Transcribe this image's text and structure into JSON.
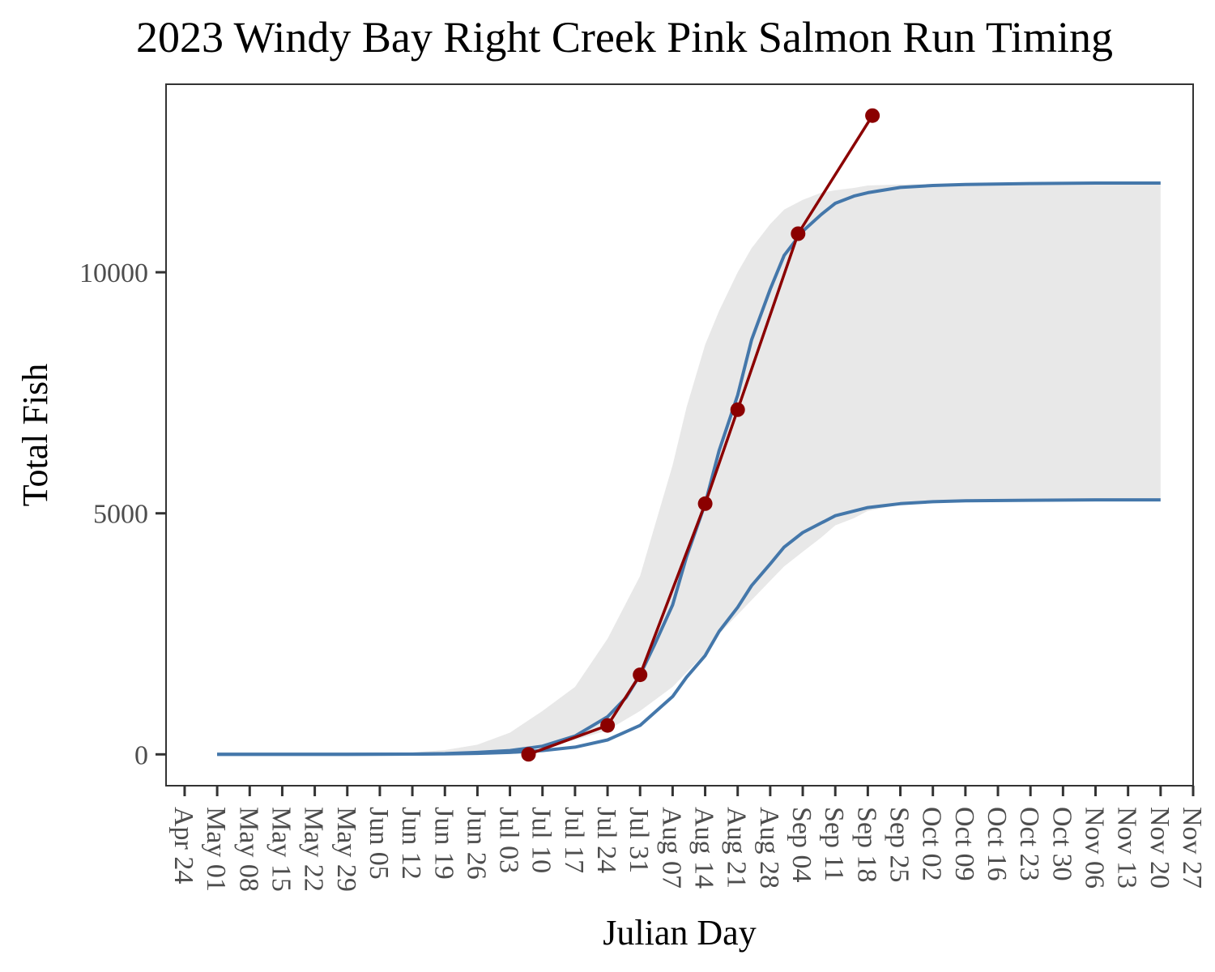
{
  "chart_data": {
    "type": "line",
    "title": "2023 Windy Bay Right Creek Pink Salmon Run Timing",
    "xlabel": "Julian Day",
    "ylabel": "Total Fish",
    "x_tick_labels": [
      "Apr 24",
      "May 01",
      "May 08",
      "May 15",
      "May 22",
      "May 29",
      "Jun 05",
      "Jun 12",
      "Jun 19",
      "Jun 26",
      "Jul 03",
      "Jul 10",
      "Jul 17",
      "Jul 24",
      "Jul 31",
      "Aug 07",
      "Aug 14",
      "Aug 21",
      "Aug 28",
      "Sep 04",
      "Sep 11",
      "Sep 18",
      "Sep 25",
      "Oct 02",
      "Oct 09",
      "Oct 16",
      "Oct 23",
      "Oct 30",
      "Nov 06",
      "Nov 13",
      "Nov 20",
      "Nov 27"
    ],
    "y_ticks": [
      0,
      5000,
      10000
    ],
    "y_tick_labels": [
      "0",
      "5000",
      "10000"
    ],
    "ylim": [
      -650,
      13900
    ],
    "xlim": [
      "2023-04-20",
      "2023-11-27"
    ],
    "grid": false,
    "panel_background": "#ebebeb",
    "colors": {
      "band": "#e8e8e8",
      "curve": "#4477aa",
      "observed": "#8b0000",
      "panel_border": "#333333",
      "axis_text": "#4d4d4d"
    },
    "band": {
      "x": [
        "2023-05-01",
        "2023-05-15",
        "2023-05-29",
        "2023-06-12",
        "2023-06-19",
        "2023-06-26",
        "2023-07-03",
        "2023-07-10",
        "2023-07-17",
        "2023-07-24",
        "2023-07-31",
        "2023-08-07",
        "2023-08-10",
        "2023-08-14",
        "2023-08-17",
        "2023-08-21",
        "2023-08-24",
        "2023-08-28",
        "2023-08-31",
        "2023-09-04",
        "2023-09-08",
        "2023-09-11",
        "2023-09-15",
        "2023-09-18",
        "2023-09-25",
        "2023-10-02",
        "2023-10-09",
        "2023-10-23",
        "2023-11-06",
        "2023-11-20"
      ],
      "upper": [
        0,
        0,
        10,
        40,
        90,
        200,
        450,
        900,
        1400,
        2400,
        3700,
        6000,
        7200,
        8500,
        9200,
        10000,
        10500,
        11000,
        11300,
        11500,
        11650,
        11700,
        11750,
        11800,
        11820,
        11830,
        11840,
        11850,
        11850,
        11850
      ],
      "lower": [
        0,
        0,
        0,
        10,
        20,
        40,
        80,
        150,
        300,
        500,
        900,
        1400,
        1700,
        2100,
        2500,
        2900,
        3200,
        3600,
        3900,
        4200,
        4500,
        4750,
        4900,
        5050,
        5180,
        5220,
        5250,
        5270,
        5280,
        5280
      ]
    },
    "series": [
      {
        "x": [
          "2023-05-01",
          "2023-05-15",
          "2023-05-29",
          "2023-06-12",
          "2023-06-19",
          "2023-06-26",
          "2023-07-03",
          "2023-07-10",
          "2023-07-17",
          "2023-07-24",
          "2023-07-28",
          "2023-07-31",
          "2023-08-03",
          "2023-08-07",
          "2023-08-10",
          "2023-08-14",
          "2023-08-17",
          "2023-08-21",
          "2023-08-24",
          "2023-08-28",
          "2023-08-31",
          "2023-09-04",
          "2023-09-08",
          "2023-09-11",
          "2023-09-15",
          "2023-09-18",
          "2023-09-25",
          "2023-10-02",
          "2023-10-09",
          "2023-10-23",
          "2023-11-06",
          "2023-11-20"
        ],
        "values": [
          0,
          0,
          0,
          5,
          15,
          40,
          80,
          170,
          380,
          780,
          1180,
          1650,
          2250,
          3100,
          4100,
          5200,
          6300,
          7450,
          8600,
          9650,
          10350,
          10850,
          11200,
          11430,
          11580,
          11650,
          11760,
          11800,
          11820,
          11840,
          11850,
          11850
        ]
      },
      {
        "x": [
          "2023-05-01",
          "2023-05-15",
          "2023-05-29",
          "2023-06-12",
          "2023-06-19",
          "2023-06-26",
          "2023-07-03",
          "2023-07-10",
          "2023-07-17",
          "2023-07-24",
          "2023-07-31",
          "2023-08-07",
          "2023-08-10",
          "2023-08-14",
          "2023-08-17",
          "2023-08-21",
          "2023-08-24",
          "2023-08-28",
          "2023-08-31",
          "2023-09-04",
          "2023-09-11",
          "2023-09-18",
          "2023-09-25",
          "2023-10-02",
          "2023-10-09",
          "2023-10-23",
          "2023-11-06",
          "2023-11-20"
        ],
        "values": [
          0,
          0,
          0,
          5,
          10,
          20,
          40,
          80,
          150,
          300,
          600,
          1200,
          1600,
          2050,
          2550,
          3050,
          3500,
          3950,
          4300,
          4600,
          4950,
          5120,
          5200,
          5240,
          5260,
          5270,
          5280,
          5280
        ]
      },
      {
        "x": [
          "2023-07-07",
          "2023-07-24",
          "2023-07-31",
          "2023-08-14",
          "2023-08-21",
          "2023-09-03",
          "2023-09-19"
        ],
        "values": [
          0,
          600,
          1650,
          5200,
          7150,
          10800,
          13250
        ]
      }
    ]
  }
}
